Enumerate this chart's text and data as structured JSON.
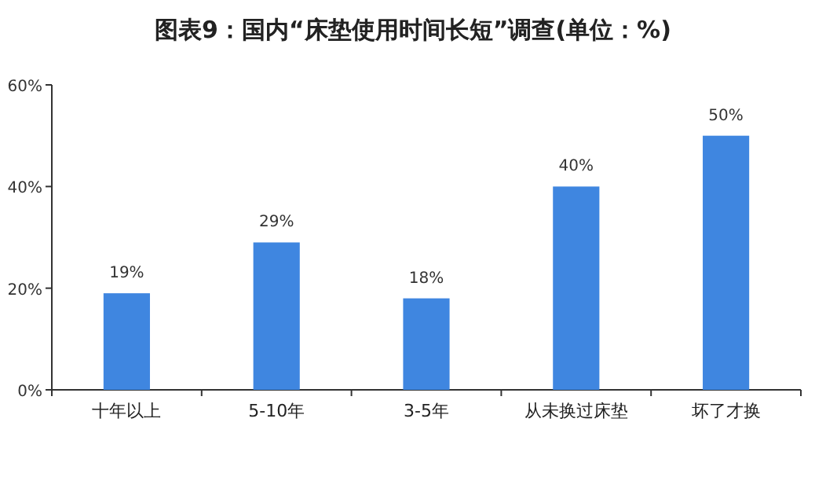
{
  "chart_data": {
    "type": "bar",
    "title": "图表9：国内“床垫使用时间长短”调查(单位：%)",
    "categories": [
      "十年以上",
      "5-10年",
      "3-5年",
      "从未换过床垫",
      "坏了才换"
    ],
    "values": [
      19,
      29,
      18,
      40,
      50
    ],
    "color": "#3f86e0",
    "value_labels": [
      "19%",
      "29%",
      "18%",
      "40%",
      "50%"
    ],
    "ylim": [
      0,
      60
    ],
    "yticks": [
      {
        "value": 0,
        "label": "0%"
      },
      {
        "value": 20,
        "label": "20%"
      },
      {
        "value": 40,
        "label": "40%"
      },
      {
        "value": 60,
        "label": "60%"
      }
    ]
  }
}
